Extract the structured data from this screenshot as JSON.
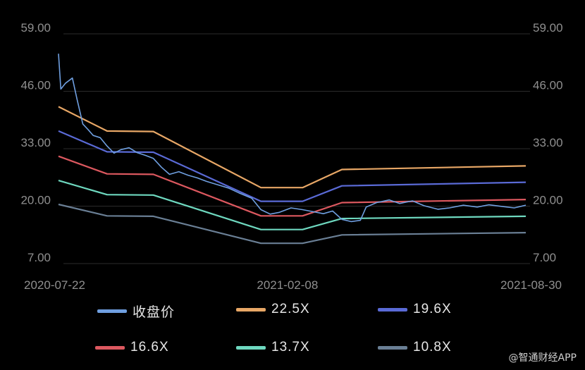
{
  "chart_data": {
    "type": "line",
    "x_ticks": [
      "2020-07-22",
      "2021-02-08",
      "2021-08-30"
    ],
    "y_ticks": [
      "59.00",
      "46.00",
      "33.00",
      "20.00",
      "7.00"
    ],
    "ylim": [
      7,
      59
    ],
    "xlim": [
      "2020-07-22",
      "2021-08-30"
    ],
    "grid": true,
    "legend_position": "bottom",
    "series": [
      {
        "name": "收盘价",
        "color": "#6f9fe0",
        "points": [
          [
            "2020-07-22",
            54.5
          ],
          [
            "2020-07-24",
            46.5
          ],
          [
            "2020-07-28",
            47.8
          ],
          [
            "2020-08-03",
            49.0
          ],
          [
            "2020-08-07",
            44.2
          ],
          [
            "2020-08-12",
            38.6
          ],
          [
            "2020-08-17",
            37.2
          ],
          [
            "2020-08-21",
            36.0
          ],
          [
            "2020-08-27",
            35.5
          ],
          [
            "2020-09-02",
            33.6
          ],
          [
            "2020-09-08",
            32.0
          ],
          [
            "2020-09-14",
            32.8
          ],
          [
            "2020-09-21",
            33.2
          ],
          [
            "2020-09-28",
            32.1
          ],
          [
            "2020-10-05",
            31.5
          ],
          [
            "2020-10-12",
            30.8
          ],
          [
            "2020-10-19",
            28.8
          ],
          [
            "2020-10-26",
            27.2
          ],
          [
            "2020-11-03",
            27.8
          ],
          [
            "2020-11-11",
            27.0
          ],
          [
            "2020-11-19",
            26.4
          ],
          [
            "2020-11-27",
            25.6
          ],
          [
            "2020-12-07",
            24.8
          ],
          [
            "2020-12-16",
            24.1
          ],
          [
            "2020-12-25",
            23.0
          ],
          [
            "2021-01-05",
            21.8
          ],
          [
            "2021-01-13",
            19.2
          ],
          [
            "2021-01-21",
            18.2
          ],
          [
            "2021-01-29",
            18.6
          ],
          [
            "2021-02-08",
            19.6
          ],
          [
            "2021-02-18",
            19.2
          ],
          [
            "2021-02-26",
            18.8
          ],
          [
            "2021-03-08",
            18.3
          ],
          [
            "2021-03-16",
            18.9
          ],
          [
            "2021-03-24",
            17.0
          ],
          [
            "2021-04-01",
            16.5
          ],
          [
            "2021-04-09",
            16.8
          ],
          [
            "2021-04-14",
            19.8
          ],
          [
            "2021-04-23",
            20.8
          ],
          [
            "2021-05-04",
            21.4
          ],
          [
            "2021-05-13",
            20.6
          ],
          [
            "2021-05-24",
            21.2
          ],
          [
            "2021-06-03",
            20.1
          ],
          [
            "2021-06-15",
            19.3
          ],
          [
            "2021-06-25",
            19.6
          ],
          [
            "2021-07-07",
            20.2
          ],
          [
            "2021-07-19",
            19.8
          ],
          [
            "2021-07-29",
            20.3
          ],
          [
            "2021-08-10",
            19.9
          ],
          [
            "2021-08-20",
            19.6
          ],
          [
            "2021-08-30",
            20.2
          ]
        ]
      },
      {
        "name": "22.5X",
        "color": "#e8a766",
        "points": [
          [
            "2020-07-22",
            42.5
          ],
          [
            "2020-09-02",
            37.0
          ],
          [
            "2020-10-12",
            36.9
          ],
          [
            "2021-01-13",
            24.2
          ],
          [
            "2021-02-18",
            24.2
          ],
          [
            "2021-03-24",
            28.3
          ],
          [
            "2021-08-30",
            29.1
          ]
        ]
      },
      {
        "name": "19.6X",
        "color": "#5a6ad6",
        "points": [
          [
            "2020-07-22",
            37.0
          ],
          [
            "2020-09-02",
            32.3
          ],
          [
            "2020-10-12",
            32.2
          ],
          [
            "2021-01-13",
            21.1
          ],
          [
            "2021-02-18",
            21.1
          ],
          [
            "2021-03-24",
            24.6
          ],
          [
            "2021-08-30",
            25.4
          ]
        ]
      },
      {
        "name": "16.6X",
        "color": "#dc585f",
        "points": [
          [
            "2020-07-22",
            31.3
          ],
          [
            "2020-09-02",
            27.3
          ],
          [
            "2020-10-12",
            27.2
          ],
          [
            "2021-01-13",
            17.8
          ],
          [
            "2021-02-18",
            17.8
          ],
          [
            "2021-03-24",
            20.8
          ],
          [
            "2021-08-30",
            21.5
          ]
        ]
      },
      {
        "name": "13.7X",
        "color": "#6ed8bf",
        "points": [
          [
            "2020-07-22",
            25.8
          ],
          [
            "2020-09-02",
            22.6
          ],
          [
            "2020-10-12",
            22.5
          ],
          [
            "2021-01-13",
            14.7
          ],
          [
            "2021-02-18",
            14.7
          ],
          [
            "2021-03-24",
            17.2
          ],
          [
            "2021-08-30",
            17.7
          ]
        ]
      },
      {
        "name": "10.8X",
        "color": "#6a7f95",
        "points": [
          [
            "2020-07-22",
            20.4
          ],
          [
            "2020-09-02",
            17.8
          ],
          [
            "2020-10-12",
            17.7
          ],
          [
            "2021-01-13",
            11.6
          ],
          [
            "2021-02-18",
            11.6
          ],
          [
            "2021-03-24",
            13.5
          ],
          [
            "2021-08-30",
            14.0
          ]
        ]
      }
    ]
  },
  "watermark": "@智通财经APP"
}
